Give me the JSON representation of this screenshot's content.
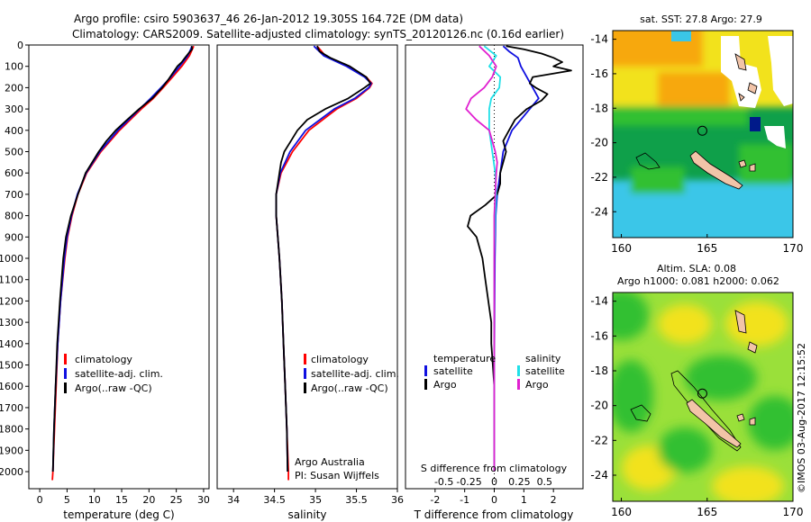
{
  "header": {
    "line1": "Argo profile: csiro 5903637_46 26-Jan-2012 19.305S 164.72E (DM data)",
    "line2": "Climatology: CARS2009. Satellite-adjusted climatology: synTS_20120126.nc (0.16d earlier)"
  },
  "credits": {
    "org": "Argo Australia",
    "pi": "PI: Susan Wijffels",
    "stamp": "©IMOS 03-Aug-2017 12:15:52"
  },
  "colors": {
    "climatology": "#ff0000",
    "satellite": "#1010e0",
    "argo": "#000000",
    "salinity_satellite": "#20e0e8",
    "salinity_argo": "#e020d0",
    "map_deep_green": "#0fa04a",
    "map_green": "#30c030",
    "map_light_green": "#9ae03a",
    "map_yellow": "#f2e21a",
    "map_orange": "#f7a80c",
    "map_cyan": "#3ac6e8",
    "map_navy": "#001a8a",
    "land": "#f2c4a8"
  },
  "chart_data": [
    {
      "type": "line",
      "title": "",
      "xlabel": "temperature (deg C)",
      "ylabel": "",
      "xlim": [
        -2,
        31
      ],
      "ylim": [
        2080,
        0
      ],
      "xticks": [
        0,
        5,
        10,
        15,
        20,
        25,
        30
      ],
      "yticks": [
        0,
        100,
        200,
        300,
        400,
        500,
        600,
        700,
        800,
        900,
        1000,
        1100,
        1200,
        1300,
        1400,
        1500,
        1600,
        1700,
        1800,
        1900,
        2000
      ],
      "legend": [
        "climatology",
        "satellite-adj. clim.",
        "Argo(..raw -QC)"
      ],
      "series": [
        {
          "name": "climatology",
          "depth": [
            5,
            50,
            100,
            150,
            200,
            250,
            300,
            400,
            500,
            600,
            700,
            800,
            900,
            1000,
            1200,
            1400,
            1600,
            1800,
            2000,
            2040
          ],
          "values": [
            28.2,
            27.4,
            26.0,
            24.3,
            22.6,
            20.8,
            18.6,
            14.6,
            11.2,
            8.6,
            7.0,
            5.9,
            5.1,
            4.6,
            3.8,
            3.3,
            3.0,
            2.7,
            2.4,
            2.3
          ]
        },
        {
          "name": "satellite-adj. clim.",
          "depth": [
            5,
            50,
            100,
            150,
            200,
            250,
            300,
            400,
            500,
            600,
            700,
            800,
            900,
            1000,
            1200,
            1400,
            1600,
            1800,
            2000
          ],
          "values": [
            27.9,
            27.1,
            25.6,
            24.0,
            22.2,
            20.3,
            18.3,
            14.3,
            11.0,
            8.5,
            6.9,
            5.8,
            5.0,
            4.5,
            3.8,
            3.3,
            2.9,
            2.6,
            2.4
          ]
        },
        {
          "name": "Argo(..raw -QC)",
          "depth": [
            5,
            20,
            40,
            60,
            80,
            100,
            130,
            160,
            200,
            250,
            300,
            350,
            400,
            450,
            500,
            550,
            600,
            700,
            800,
            900,
            1000,
            1200,
            1400,
            1600,
            1800,
            2000
          ],
          "values": [
            27.8,
            27.9,
            27.2,
            26.6,
            26.0,
            25.2,
            24.4,
            23.6,
            22.4,
            20.6,
            18.2,
            16.0,
            13.9,
            12.2,
            10.8,
            9.6,
            8.4,
            7.0,
            5.7,
            4.8,
            4.3,
            3.7,
            3.2,
            2.9,
            2.6,
            2.4
          ]
        }
      ]
    },
    {
      "type": "line",
      "xlabel": "salinity",
      "xlim": [
        33.8,
        36.0
      ],
      "ylim": [
        2080,
        0
      ],
      "xticks": [
        34,
        34.5,
        35,
        35.5,
        36
      ],
      "legend": [
        "climatology",
        "satellite-adj. clim.",
        "Argo(..raw -QC)"
      ],
      "series": [
        {
          "name": "climatology",
          "depth": [
            5,
            50,
            100,
            150,
            180,
            200,
            250,
            300,
            400,
            500,
            600,
            700,
            800,
            900,
            1000,
            1200,
            1400,
            1600,
            1800,
            2000,
            2040
          ],
          "values": [
            35.02,
            35.12,
            35.4,
            35.62,
            35.69,
            35.66,
            35.5,
            35.26,
            34.92,
            34.72,
            34.58,
            34.52,
            34.52,
            34.54,
            34.56,
            34.59,
            34.61,
            34.63,
            34.65,
            34.67,
            34.67
          ]
        },
        {
          "name": "satellite-adj. clim.",
          "depth": [
            5,
            50,
            100,
            150,
            180,
            200,
            250,
            300,
            400,
            500,
            600,
            700,
            800,
            900,
            1000,
            1200,
            1400,
            1600,
            1800,
            2000
          ],
          "values": [
            34.98,
            35.1,
            35.38,
            35.6,
            35.68,
            35.65,
            35.48,
            35.23,
            34.88,
            34.69,
            34.57,
            34.52,
            34.52,
            34.54,
            34.56,
            34.59,
            34.61,
            34.63,
            34.65,
            34.66
          ]
        },
        {
          "name": "Argo(..raw -QC)",
          "depth": [
            5,
            30,
            60,
            100,
            150,
            180,
            200,
            250,
            300,
            350,
            400,
            450,
            500,
            550,
            600,
            700,
            800,
            900,
            1000,
            1200,
            1400,
            1600,
            1800,
            2000
          ],
          "values": [
            35.02,
            35.05,
            35.18,
            35.42,
            35.62,
            35.67,
            35.6,
            35.4,
            35.12,
            34.9,
            34.78,
            34.7,
            34.62,
            34.58,
            34.56,
            34.52,
            34.52,
            34.54,
            34.56,
            34.59,
            34.61,
            34.63,
            34.65,
            34.66
          ]
        }
      ]
    },
    {
      "type": "line",
      "xlabel": "T difference from climatology",
      "xlabel_top": "S difference from climatology",
      "xlim": [
        -3,
        3
      ],
      "ylim": [
        2080,
        0
      ],
      "xticks": [
        -2,
        -1,
        0,
        1,
        2
      ],
      "xticks_salinity": [
        -0.5,
        -0.25,
        0,
        0.25,
        0.5
      ],
      "legend": {
        "temperature": [
          "satellite",
          "Argo"
        ],
        "salinity": [
          "satellite",
          "Argo"
        ]
      },
      "legend_headers": [
        "temperature",
        "salinity"
      ],
      "series": [
        {
          "name": "temperature satellite",
          "depth": [
            5,
            30,
            60,
            100,
            150,
            200,
            250,
            300,
            400,
            500,
            600,
            700,
            800,
            1000,
            1500,
            2000
          ],
          "values": [
            0.3,
            0.5,
            0.8,
            0.9,
            1.1,
            1.3,
            1.5,
            1.2,
            0.6,
            0.3,
            0.2,
            0.1,
            0.05,
            0.02,
            0,
            0
          ]
        },
        {
          "name": "temperature Argo",
          "depth": [
            5,
            20,
            40,
            60,
            80,
            100,
            120,
            150,
            180,
            200,
            230,
            260,
            300,
            350,
            400,
            450,
            500,
            550,
            600,
            650,
            700,
            750,
            800,
            850,
            900,
            1000,
            1100,
            1200,
            1300,
            1400,
            1500,
            1600,
            1800,
            2000
          ],
          "values": [
            0.4,
            1.0,
            1.6,
            2.0,
            2.3,
            2.0,
            2.6,
            1.3,
            1.2,
            1.4,
            1.8,
            1.6,
            1.1,
            0.7,
            0.5,
            0.3,
            0.4,
            0.3,
            0.2,
            0.2,
            0.1,
            -0.3,
            -0.8,
            -0.9,
            -0.6,
            -0.4,
            -0.3,
            -0.2,
            -0.1,
            -0.1,
            -0.05,
            0,
            0,
            0
          ]
        },
        {
          "name": "salinity satellite",
          "depth": [
            5,
            50,
            100,
            150,
            200,
            250,
            300,
            400,
            500,
            600,
            700,
            800,
            1000,
            1500,
            2000
          ],
          "values": [
            -0.1,
            0.02,
            -0.05,
            0.06,
            0.05,
            -0.03,
            -0.05,
            -0.05,
            -0.02,
            0.01,
            0.02,
            0.01,
            0.0,
            0.0,
            0.0
          ]
        },
        {
          "name": "salinity Argo",
          "depth": [
            5,
            50,
            100,
            150,
            200,
            250,
            300,
            350,
            400,
            450,
            500,
            550,
            600,
            700,
            800,
            1000,
            1500,
            2000
          ],
          "values": [
            -0.15,
            -0.05,
            0.02,
            -0.02,
            -0.1,
            -0.23,
            -0.28,
            -0.18,
            -0.05,
            -0.02,
            0.01,
            0.03,
            0.02,
            0.01,
            0.0,
            0.0,
            0.0,
            0.0
          ]
        }
      ]
    },
    {
      "type": "heatmap",
      "title": "sat. SST: 27.8 Argo: 27.9",
      "xlim": [
        159.5,
        170
      ],
      "ylim": [
        -25.5,
        -13.5
      ],
      "xticks": [
        160,
        165,
        170
      ],
      "yticks": [
        -14,
        -16,
        -18,
        -20,
        -22,
        -24
      ],
      "marker": {
        "lon": 164.72,
        "lat": -19.305
      }
    },
    {
      "type": "heatmap",
      "title": "Altim. SLA: 0.08",
      "subtitle": "Argo h1000: 0.081 h2000: 0.062",
      "xlim": [
        159.5,
        170
      ],
      "ylim": [
        -25.5,
        -13.5
      ],
      "xticks": [
        160,
        165,
        170
      ],
      "yticks": [
        -14,
        -16,
        -18,
        -20,
        -22,
        -24
      ],
      "marker": {
        "lon": 164.72,
        "lat": -19.305
      }
    }
  ]
}
